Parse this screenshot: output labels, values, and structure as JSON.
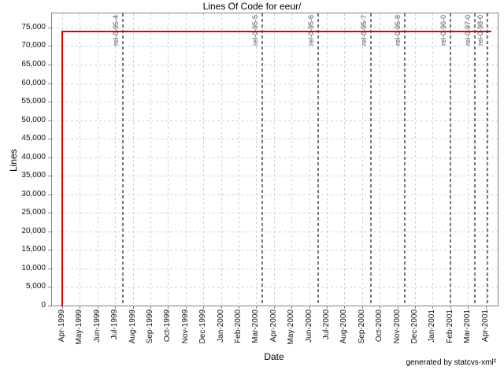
{
  "chart_data": {
    "type": "line",
    "title": "Lines Of Code for eeur/",
    "xlabel": "Date",
    "ylabel": "Lines",
    "credit": "generated by statcvs-xml²",
    "x_units": "month_index_from_first_tick",
    "x_tick_labels": [
      "Apr-1999",
      "May-1999",
      "Jun-1999",
      "Jul-1999",
      "Aug-1999",
      "Sep-1999",
      "Oct-1999",
      "Nov-1999",
      "Dec-1999",
      "Jan-2000",
      "Feb-2000",
      "Mar-2000",
      "Apr-2000",
      "May-2000",
      "Jun-2000",
      "Jul-2000",
      "Aug-2000",
      "Sep-2000",
      "Oct-2000",
      "Nov-2000",
      "Dec-2000",
      "Jan-2001",
      "Feb-2001",
      "Mar-2001",
      "Apr-2001"
    ],
    "y_tick_step": 5000,
    "y_tick_labels": [
      "0",
      "5,000",
      "10,000",
      "15,000",
      "20,000",
      "25,000",
      "30,000",
      "35,000",
      "40,000",
      "45,000",
      "50,000",
      "55,000",
      "60,000",
      "65,000",
      "70,000",
      "75,000"
    ],
    "ylim": [
      0,
      78800
    ],
    "grid": true,
    "series": [
      {
        "name": "Lines of Code",
        "color": "#dd0000",
        "points": [
          [
            0,
            0
          ],
          [
            0,
            74000
          ],
          [
            24.3,
            74000
          ]
        ]
      }
    ],
    "releases": [
      {
        "label": "rel-0-95-4",
        "x": 3.45
      },
      {
        "label": "rel-0-95-5",
        "x": 11.35
      },
      {
        "label": "rel-0-95-6",
        "x": 14.5
      },
      {
        "label": "rel-0-95-7",
        "x": 17.5
      },
      {
        "label": "rel-0-95-8",
        "x": 19.4
      },
      {
        "label": "rel-0-96-0",
        "x": 22.0
      },
      {
        "label": "rel-0-97-0",
        "x": 23.4
      },
      {
        "label": "rel-0-98-0",
        "x": 24.1
      }
    ],
    "colors": {
      "series": "#dd0000",
      "grid": "#d2d2d2",
      "axis_border": "#808080",
      "release_line": "#7a7a7a",
      "tick_text": "#111111",
      "release_text": "#555555"
    }
  }
}
